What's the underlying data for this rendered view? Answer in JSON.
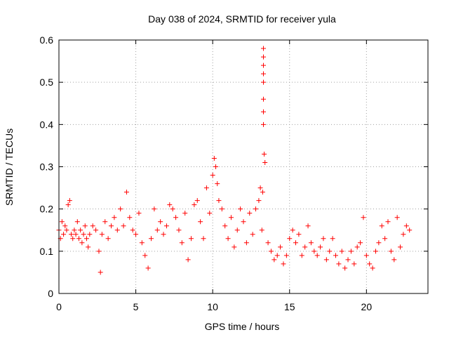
{
  "chart_data": {
    "type": "scatter",
    "title": "Day 038 of 2024, SRMTID for receiver yula",
    "xlabel": "GPS time / hours",
    "ylabel": "SRMTID / TECUs",
    "xlim": [
      0,
      24
    ],
    "ylim": [
      0,
      0.6
    ],
    "x_ticks": [
      0,
      5,
      10,
      15,
      20
    ],
    "x_tick_labels": [
      "0",
      "5",
      "10",
      "15",
      "20"
    ],
    "y_ticks": [
      0,
      0.1,
      0.2,
      0.3,
      0.4,
      0.5,
      0.6
    ],
    "y_tick_labels": [
      "0",
      "0.1",
      "0.2",
      "0.3",
      "0.4",
      "0.5",
      "0.6"
    ],
    "grid": true,
    "marker": "plus",
    "color": "#ff0000",
    "series": [
      {
        "name": "SRMTID",
        "x": [
          0.0,
          0.1,
          0.2,
          0.3,
          0.4,
          0.5,
          0.6,
          0.7,
          0.8,
          0.9,
          1.0,
          1.1,
          1.2,
          1.3,
          1.4,
          1.5,
          1.6,
          1.7,
          1.8,
          1.9,
          2.0,
          2.2,
          2.4,
          2.6,
          2.7,
          2.8,
          3.0,
          3.2,
          3.4,
          3.6,
          3.8,
          4.0,
          4.2,
          4.4,
          4.6,
          4.8,
          5.0,
          5.2,
          5.4,
          5.6,
          5.8,
          6.0,
          6.2,
          6.4,
          6.6,
          6.8,
          7.0,
          7.2,
          7.4,
          7.6,
          7.8,
          8.0,
          8.2,
          8.4,
          8.6,
          8.8,
          9.0,
          9.2,
          9.4,
          9.6,
          9.8,
          10.0,
          10.1,
          10.2,
          10.3,
          10.4,
          10.6,
          10.8,
          11.0,
          11.2,
          11.4,
          11.6,
          11.8,
          12.0,
          12.2,
          12.4,
          12.6,
          12.8,
          13.0,
          13.1,
          13.2,
          13.25,
          13.3,
          13.3,
          13.3,
          13.3,
          13.3,
          13.3,
          13.3,
          13.3,
          13.35,
          13.4,
          13.6,
          13.8,
          14.0,
          14.2,
          14.4,
          14.6,
          14.8,
          15.0,
          15.2,
          15.4,
          15.6,
          15.8,
          16.0,
          16.2,
          16.4,
          16.6,
          16.8,
          17.0,
          17.2,
          17.4,
          17.6,
          17.8,
          18.0,
          18.2,
          18.4,
          18.6,
          18.8,
          19.0,
          19.2,
          19.4,
          19.6,
          19.8,
          20.0,
          20.2,
          20.4,
          20.6,
          20.8,
          21.0,
          21.2,
          21.4,
          21.6,
          21.8,
          22.0,
          22.2,
          22.4,
          22.6,
          22.8
        ],
        "y": [
          0.15,
          0.13,
          0.17,
          0.14,
          0.16,
          0.15,
          0.21,
          0.22,
          0.14,
          0.13,
          0.15,
          0.14,
          0.17,
          0.13,
          0.15,
          0.12,
          0.14,
          0.16,
          0.13,
          0.11,
          0.14,
          0.16,
          0.15,
          0.1,
          0.05,
          0.14,
          0.17,
          0.13,
          0.16,
          0.18,
          0.15,
          0.2,
          0.16,
          0.24,
          0.18,
          0.15,
          0.14,
          0.19,
          0.12,
          0.09,
          0.06,
          0.13,
          0.2,
          0.15,
          0.17,
          0.14,
          0.16,
          0.21,
          0.2,
          0.18,
          0.15,
          0.12,
          0.19,
          0.08,
          0.13,
          0.21,
          0.22,
          0.17,
          0.13,
          0.25,
          0.19,
          0.28,
          0.32,
          0.3,
          0.26,
          0.22,
          0.2,
          0.16,
          0.13,
          0.18,
          0.11,
          0.15,
          0.2,
          0.17,
          0.12,
          0.19,
          0.14,
          0.2,
          0.22,
          0.25,
          0.15,
          0.24,
          0.58,
          0.56,
          0.54,
          0.52,
          0.5,
          0.46,
          0.43,
          0.4,
          0.33,
          0.31,
          0.12,
          0.1,
          0.08,
          0.09,
          0.11,
          0.07,
          0.09,
          0.13,
          0.15,
          0.12,
          0.14,
          0.09,
          0.11,
          0.16,
          0.12,
          0.1,
          0.09,
          0.11,
          0.13,
          0.08,
          0.1,
          0.13,
          0.09,
          0.07,
          0.1,
          0.06,
          0.08,
          0.1,
          0.07,
          0.11,
          0.12,
          0.18,
          0.09,
          0.07,
          0.06,
          0.1,
          0.12,
          0.16,
          0.13,
          0.17,
          0.1,
          0.08,
          0.18,
          0.11,
          0.14,
          0.16,
          0.15
        ]
      }
    ]
  }
}
